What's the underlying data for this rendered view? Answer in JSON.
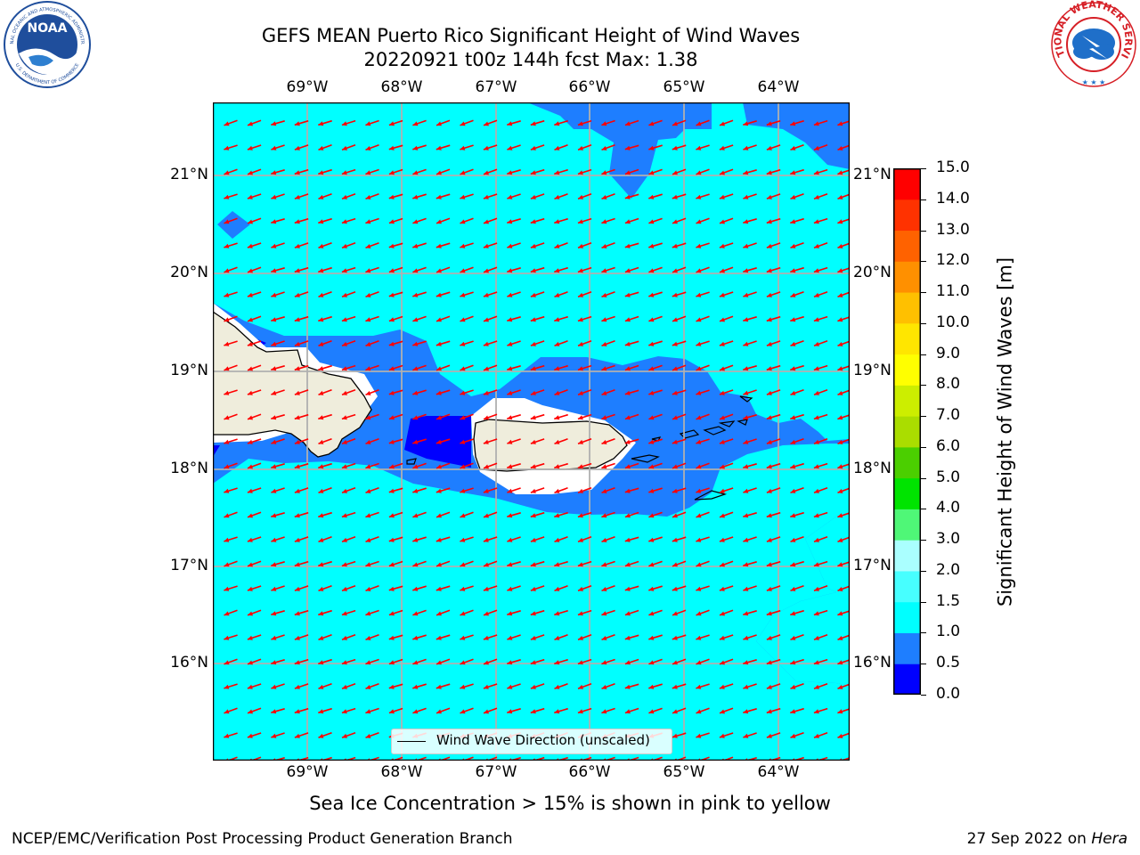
{
  "header": {
    "title": "GEFS MEAN Puerto Rico Significant Height of Wind Waves",
    "subtitle": "20220921 t00z 144h fcst   Max: 1.38"
  },
  "logos": {
    "noaa": {
      "center_text": "NOAA",
      "ring_text_top": "NATIONAL OCEANIC AND ATMOSPHERIC ADMINISTRATION",
      "ring_text_bottom": "U.S. DEPARTMENT OF COMMERCE",
      "color": "#1f4e9c"
    },
    "nws": {
      "ring_text": "NATIONAL WEATHER SERVICE",
      "color": "#d61f26",
      "accent": "#1f6fc9"
    }
  },
  "axes": {
    "lon_ticks": [
      "69°W",
      "68°W",
      "67°W",
      "66°W",
      "65°W",
      "64°W"
    ],
    "lat_ticks": [
      "21°N",
      "20°N",
      "19°N",
      "18°N",
      "17°N",
      "16°N"
    ]
  },
  "map": {
    "lon_range": [
      -70.0,
      -63.25
    ],
    "lat_range": [
      15.05,
      21.75
    ],
    "land_color": "#efeddc",
    "vector_color": "#ff0000",
    "gridline_color": "#b0b0b0",
    "legend_label": "Wind Wave Direction (unscaled)"
  },
  "colorbar": {
    "label": "Significant Height of Wind Waves [m]",
    "tick_labels": [
      "0.0",
      "0.5",
      "1.0",
      "1.5",
      "2.0",
      "3.0",
      "4.0",
      "5.0",
      "6.0",
      "7.0",
      "8.0",
      "9.0",
      "10.0",
      "11.0",
      "12.0",
      "13.0",
      "14.0",
      "15.0"
    ],
    "colors": [
      "#0000ff",
      "#1e7eff",
      "#00ffff",
      "#47ffff",
      "#aaffff",
      "#4ff777",
      "#00e400",
      "#4bcf00",
      "#aadd00",
      "#ccee00",
      "#ffff00",
      "#ffe600",
      "#ffc000",
      "#ff9000",
      "#ff6200",
      "#ff3200",
      "#ff0000"
    ]
  },
  "footer": {
    "note": "Sea Ice Concentration > 15% is shown in pink to yellow",
    "credit": "NCEP/EMC/Verification Post Processing Product Generation Branch",
    "date": "27 Sep 2022 on ",
    "host": "Hera"
  }
}
